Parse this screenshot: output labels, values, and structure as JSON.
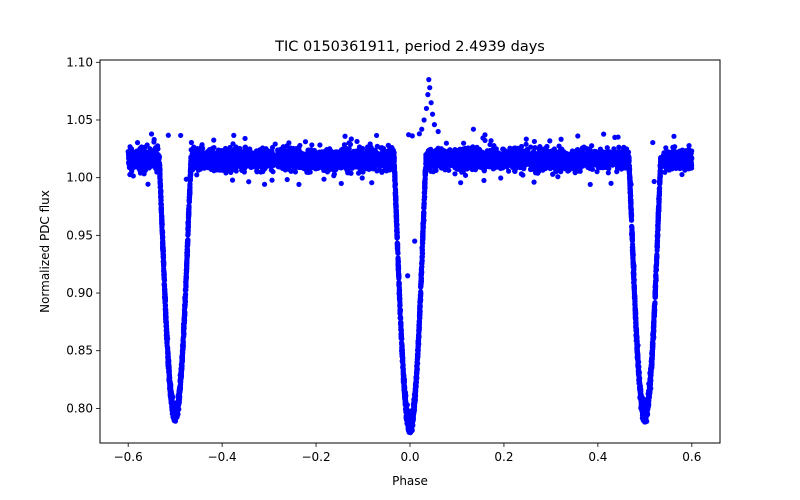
{
  "chart_data": {
    "type": "scatter",
    "title": "TIC 0150361911, period 2.4939 days",
    "xlabel": "Phase",
    "ylabel": "Normalized PDC flux",
    "xlim": [
      -0.66,
      0.66
    ],
    "ylim": [
      0.77,
      1.102
    ],
    "xticks": [
      -0.6,
      -0.4,
      -0.2,
      0.0,
      0.2,
      0.4,
      0.6
    ],
    "xtick_labels": [
      "−0.6",
      "−0.4",
      "−0.2",
      "0.0",
      "0.2",
      "0.4",
      "0.6"
    ],
    "yticks": [
      0.8,
      0.85,
      0.9,
      0.95,
      1.0,
      1.05,
      1.1
    ],
    "ytick_labels": [
      "0.80",
      "0.85",
      "0.90",
      "0.95",
      "1.00",
      "1.05",
      "1.10"
    ],
    "grid": false,
    "marker_color": "#0000ff",
    "phase_range": [
      -0.6,
      0.6
    ],
    "baseline_flux": 1.016,
    "eclipses": [
      {
        "phase": -0.5,
        "min_flux": 0.795,
        "half_width": 0.034
      },
      {
        "phase": 0.0,
        "min_flux": 0.785,
        "half_width": 0.034
      },
      {
        "phase": 0.5,
        "min_flux": 0.795,
        "half_width": 0.034
      }
    ],
    "outliers": [
      {
        "x": 0.04,
        "y": 1.085
      },
      {
        "x": 0.042,
        "y": 1.078
      },
      {
        "x": 0.038,
        "y": 1.072
      },
      {
        "x": 0.045,
        "y": 1.065
      },
      {
        "x": 0.035,
        "y": 1.06
      },
      {
        "x": 0.048,
        "y": 1.055
      },
      {
        "x": 0.03,
        "y": 1.05
      },
      {
        "x": 0.052,
        "y": 1.046
      },
      {
        "x": 0.025,
        "y": 1.042
      },
      {
        "x": 0.06,
        "y": 1.04
      },
      {
        "x": 0.135,
        "y": 1.042
      },
      {
        "x": 0.02,
        "y": 1.038
      },
      {
        "x": 0.01,
        "y": 0.945
      },
      {
        "x": -0.005,
        "y": 0.915
      }
    ]
  }
}
